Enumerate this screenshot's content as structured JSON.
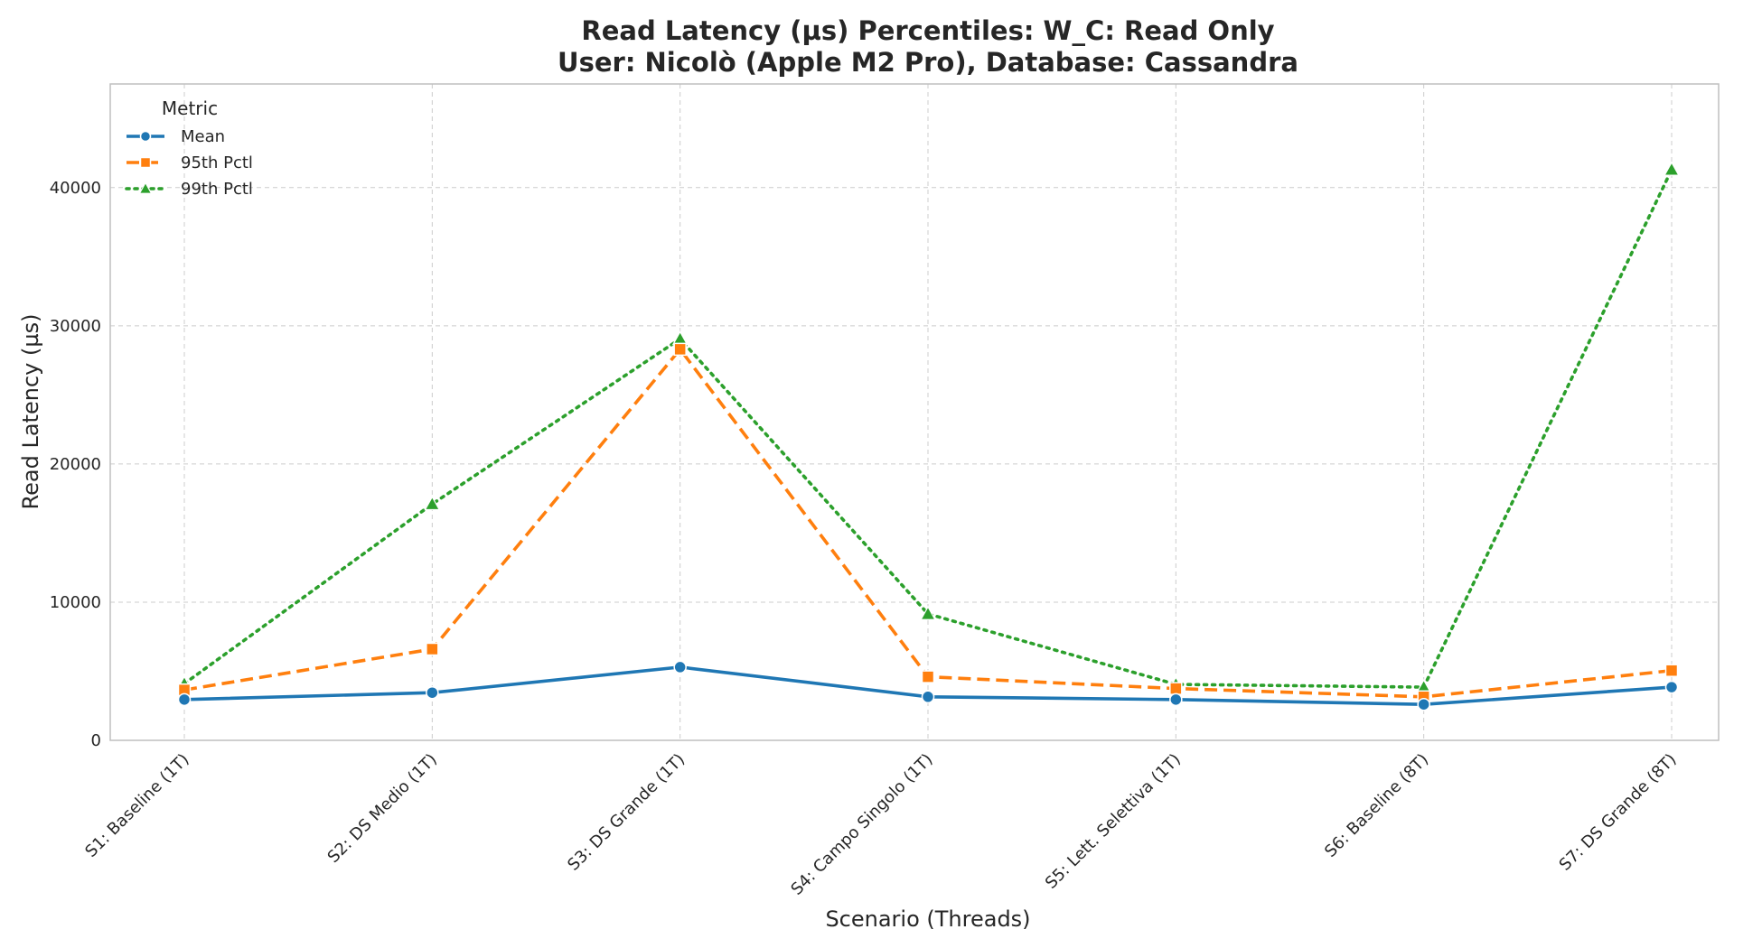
{
  "chart_data": {
    "type": "line",
    "title": "Read Latency (µs) Percentiles: W_C: Read Only",
    "subtitle": "User: Nicolò (Apple M2 Pro), Database: Cassandra",
    "xlabel": "Scenario (Threads)",
    "ylabel": "Read Latency (µs)",
    "ylim": [
      0,
      47500
    ],
    "yticks": [
      0,
      10000,
      20000,
      30000,
      40000
    ],
    "grid": true,
    "legend": {
      "title": "Metric",
      "placement": "top-left"
    },
    "categories": [
      "S1: Baseline (1T)",
      "S2: DS Medio (1T)",
      "S3: DS Grande (1T)",
      "S4: Campo Singolo (1T)",
      "S5: Lett. Selettiva (1T)",
      "S6: Baseline (8T)",
      "S7: DS Grande (8T)"
    ],
    "series": [
      {
        "name": "Mean",
        "color": "#1f77b4",
        "marker": "circle",
        "line": "solid",
        "values": [
          2950,
          3450,
          5300,
          3150,
          2950,
          2600,
          3850
        ]
      },
      {
        "name": "95th Pctl",
        "color": "#ff7f0e",
        "marker": "square",
        "line": "dashed",
        "values": [
          3650,
          6600,
          28300,
          4600,
          3750,
          3150,
          5050
        ]
      },
      {
        "name": "99th Pctl",
        "color": "#2ca02c",
        "marker": "triangle",
        "line": "dotted",
        "values": [
          4100,
          17100,
          29050,
          9150,
          4050,
          3850,
          41300
        ]
      }
    ]
  }
}
